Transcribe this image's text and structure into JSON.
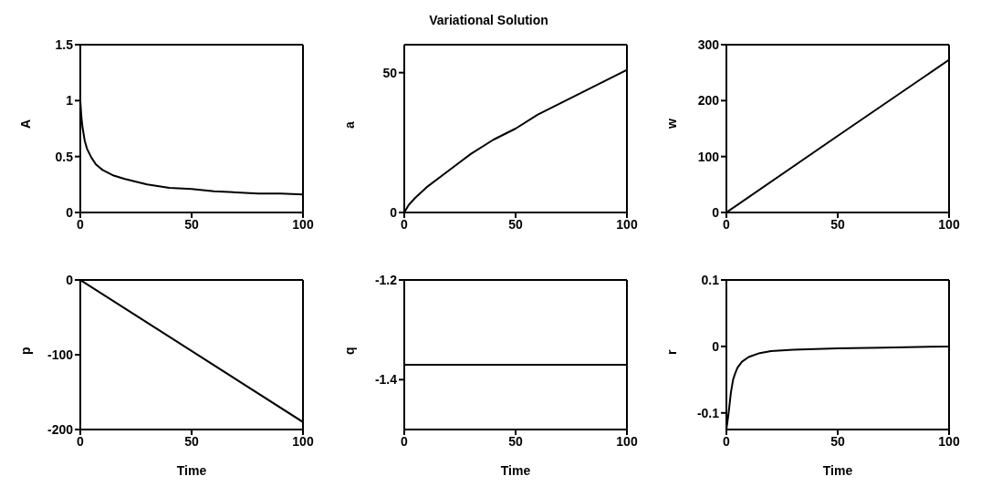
{
  "chart_data": [
    {
      "type": "line",
      "ylabel": "A",
      "xlim": [
        0,
        100
      ],
      "xticks": [
        0,
        50,
        100
      ],
      "ylim": [
        0,
        1.5
      ],
      "yticks": [
        0,
        0.5,
        1,
        1.5
      ],
      "series": [
        {
          "color": "#000000",
          "x": [
            0,
            0.5,
            1,
            2,
            3,
            5,
            7,
            10,
            15,
            20,
            30,
            40,
            50,
            60,
            70,
            80,
            90,
            100
          ],
          "values": [
            1.0,
            0.85,
            0.76,
            0.64,
            0.57,
            0.49,
            0.43,
            0.38,
            0.33,
            0.3,
            0.25,
            0.22,
            0.21,
            0.19,
            0.18,
            0.17,
            0.17,
            0.16
          ]
        }
      ]
    },
    {
      "type": "line",
      "title": "Variational Solution",
      "ylabel": "a",
      "xlim": [
        0,
        100
      ],
      "xticks": [
        0,
        50,
        100
      ],
      "ylim": [
        0,
        60
      ],
      "yticks": [
        0,
        50
      ],
      "series": [
        {
          "color": "#000000",
          "x": [
            0,
            2,
            5,
            10,
            20,
            30,
            40,
            50,
            60,
            70,
            80,
            90,
            100
          ],
          "values": [
            0,
            2.7,
            5.3,
            9,
            15,
            21,
            26,
            30,
            35,
            39,
            43,
            47,
            51
          ]
        }
      ]
    },
    {
      "type": "line",
      "ylabel": "w",
      "xlim": [
        0,
        100
      ],
      "xticks": [
        0,
        50,
        100
      ],
      "ylim": [
        0,
        300
      ],
      "yticks": [
        0,
        100,
        200,
        300
      ],
      "series": [
        {
          "color": "#000000",
          "x": [
            0,
            50,
            100
          ],
          "values": [
            0,
            137,
            273
          ]
        }
      ]
    },
    {
      "type": "line",
      "xlabel": "Time",
      "ylabel": "p",
      "xlim": [
        0,
        100
      ],
      "xticks": [
        0,
        50,
        100
      ],
      "ylim": [
        -200,
        0
      ],
      "yticks": [
        -200,
        -100,
        0
      ],
      "series": [
        {
          "color": "#000000",
          "x": [
            0,
            50,
            100
          ],
          "values": [
            0,
            -95,
            -190
          ]
        }
      ]
    },
    {
      "type": "line",
      "xlabel": "Time",
      "ylabel": "q",
      "xlim": [
        0,
        100
      ],
      "xticks": [
        0,
        50,
        100
      ],
      "ylim": [
        -1.5,
        -1.2
      ],
      "yticks": [
        -1.4,
        -1.2
      ],
      "series": [
        {
          "color": "#000000",
          "x": [
            0,
            50,
            100
          ],
          "values": [
            -1.37,
            -1.37,
            -1.37
          ]
        }
      ]
    },
    {
      "type": "line",
      "xlabel": "Time",
      "ylabel": "r",
      "xlim": [
        0,
        100
      ],
      "xticks": [
        0,
        50,
        100
      ],
      "ylim": [
        -0.125,
        0.1
      ],
      "yticks": [
        -0.1,
        0,
        0.1
      ],
      "series": [
        {
          "color": "#000000",
          "x": [
            0,
            1,
            2,
            3,
            4,
            5,
            7,
            10,
            15,
            20,
            30,
            50,
            70,
            100
          ],
          "values": [
            -0.125,
            -0.1,
            -0.07,
            -0.05,
            -0.04,
            -0.032,
            -0.023,
            -0.016,
            -0.01,
            -0.007,
            -0.005,
            -0.003,
            -0.002,
            0
          ]
        }
      ]
    }
  ]
}
